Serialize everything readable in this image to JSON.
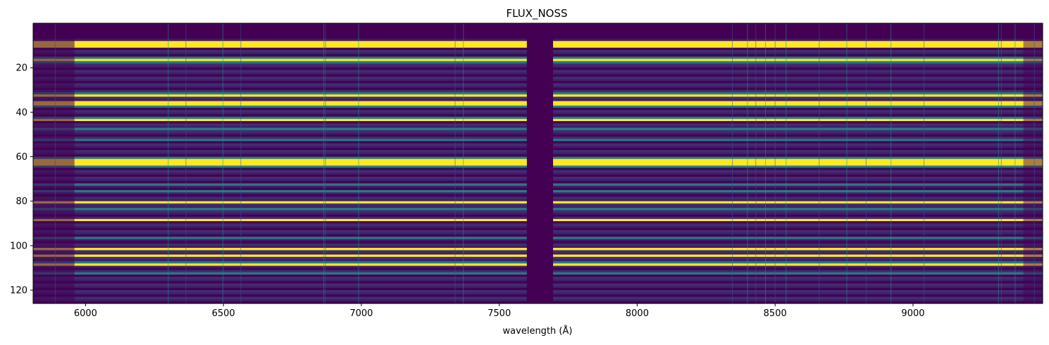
{
  "chart_data": {
    "type": "heatmap",
    "title": "FLUX_NOSS",
    "xlabel": "wavelength (Å)",
    "ylabel": "",
    "xlim": [
      5810,
      9470
    ],
    "ylim": [
      126,
      0
    ],
    "x_ticks": [
      6000,
      6500,
      7000,
      7500,
      8000,
      8500,
      9000
    ],
    "y_ticks": [
      20,
      40,
      60,
      80,
      100,
      120
    ],
    "x_tick_labels": [
      "6000",
      "6500",
      "7000",
      "7500",
      "8000",
      "8500",
      "9000"
    ],
    "y_tick_labels": [
      "20",
      "40",
      "60",
      "80",
      "100",
      "120"
    ],
    "colormap": "viridis",
    "grid": false,
    "masked_band": [
      7600,
      7695
    ],
    "rows": 126,
    "bright_rows": [
      8,
      9,
      10,
      16,
      32,
      35,
      36,
      43,
      61,
      62,
      63,
      80,
      88,
      101,
      104,
      108
    ],
    "medium_rows": [
      15,
      17,
      31,
      37,
      42,
      47,
      52,
      60,
      64,
      72,
      75,
      83,
      96,
      107,
      112
    ],
    "sky_lines": [
      5890,
      6300,
      6364,
      6498,
      6563,
      6864,
      6870,
      6990,
      7340,
      7370,
      8345,
      8400,
      8430,
      8465,
      8500,
      8540,
      8660,
      8760,
      8830,
      8920,
      9040,
      9310,
      9320,
      9370,
      9440
    ],
    "colors": {
      "viridis_low": "#440154",
      "viridis_blue": "#3b528b",
      "viridis_teal": "#21918c",
      "viridis_green": "#5ec962",
      "viridis_high": "#fde725"
    }
  }
}
